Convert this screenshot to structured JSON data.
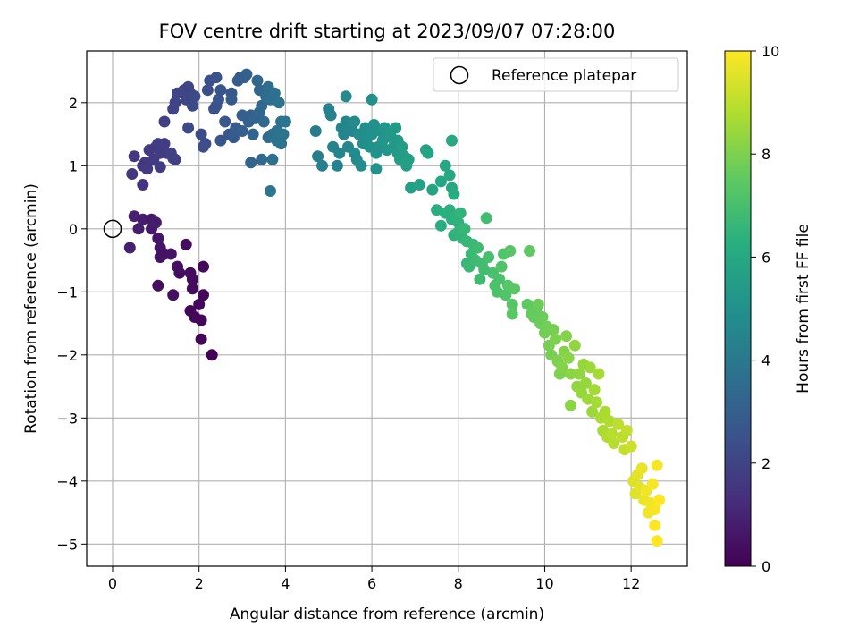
{
  "chart_data": {
    "type": "scatter",
    "title": "FOV centre drift starting at 2023/09/07 07:28:00",
    "xlabel": "Angular distance from reference (arcmin)",
    "ylabel": "Rotation from reference (arcmin)",
    "xlim": [
      -0.6,
      13.3
    ],
    "ylim": [
      -5.35,
      2.82
    ],
    "xticks": [
      0,
      2,
      4,
      6,
      8,
      10,
      12
    ],
    "yticks": [
      -5,
      -4,
      -3,
      -2,
      -1,
      0,
      1,
      2
    ],
    "grid": true,
    "legend": {
      "placement": "top-right",
      "entries": [
        "Reference platepar"
      ]
    },
    "reference_point": {
      "x": 0,
      "y": 0
    },
    "colorbar": {
      "label": "Hours from first FF file",
      "range": [
        0,
        10
      ],
      "ticks": [
        0,
        2,
        4,
        6,
        8,
        10
      ],
      "colormap": "viridis"
    },
    "points": [
      [
        0.4,
        -0.3,
        0.9
      ],
      [
        0.5,
        0.2,
        0.9
      ],
      [
        0.6,
        0.0,
        0.8
      ],
      [
        0.7,
        0.15,
        0.8
      ],
      [
        0.9,
        0.15,
        0.7
      ],
      [
        0.9,
        0.0,
        0.7
      ],
      [
        1.0,
        0.1,
        0.8
      ],
      [
        1.05,
        -0.15,
        0.6
      ],
      [
        1.1,
        -0.3,
        0.6
      ],
      [
        1.1,
        -0.45,
        0.5
      ],
      [
        1.2,
        -0.4,
        0.5
      ],
      [
        1.35,
        -0.4,
        0.5
      ],
      [
        1.05,
        -0.9,
        0.4
      ],
      [
        1.4,
        -1.05,
        0.4
      ],
      [
        1.5,
        -0.6,
        0.4
      ],
      [
        1.55,
        -0.7,
        0.4
      ],
      [
        1.7,
        -0.25,
        0.3
      ],
      [
        1.8,
        -0.7,
        0.3
      ],
      [
        1.85,
        -0.8,
        0.3
      ],
      [
        1.85,
        -0.95,
        0.3
      ],
      [
        1.8,
        -1.3,
        0.2
      ],
      [
        1.9,
        -1.4,
        0.2
      ],
      [
        2.0,
        -1.2,
        0.2
      ],
      [
        2.05,
        -1.45,
        0.2
      ],
      [
        2.1,
        -0.6,
        0.2
      ],
      [
        2.1,
        -1.05,
        0.2
      ],
      [
        2.05,
        -1.75,
        0.1
      ],
      [
        2.3,
        -2.0,
        0.05
      ],
      [
        0.45,
        0.87,
        1.6
      ],
      [
        0.5,
        1.15,
        1.6
      ],
      [
        0.7,
        1.0,
        1.6
      ],
      [
        0.7,
        0.7,
        1.5
      ],
      [
        0.75,
        1.05,
        1.6
      ],
      [
        0.8,
        0.95,
        1.7
      ],
      [
        0.85,
        1.25,
        1.7
      ],
      [
        0.95,
        1.1,
        1.7
      ],
      [
        1.0,
        1.3,
        1.7
      ],
      [
        1.05,
        1.35,
        1.8
      ],
      [
        1.1,
        1.2,
        1.8
      ],
      [
        1.1,
        0.98,
        1.8
      ],
      [
        1.2,
        1.35,
        1.8
      ],
      [
        1.25,
        1.2,
        1.8
      ],
      [
        1.35,
        1.2,
        1.9
      ],
      [
        1.4,
        1.12,
        1.9
      ],
      [
        1.45,
        1.1,
        1.9
      ],
      [
        1.2,
        1.7,
        1.9
      ],
      [
        1.4,
        1.9,
        2.0
      ],
      [
        1.45,
        2.0,
        2.0
      ],
      [
        1.5,
        2.15,
        2.0
      ],
      [
        1.65,
        2.2,
        2.1
      ],
      [
        1.7,
        2.05,
        2.1
      ],
      [
        1.75,
        2.25,
        2.1
      ],
      [
        1.8,
        2.15,
        2.1
      ],
      [
        1.85,
        1.95,
        2.2
      ],
      [
        1.75,
        1.6,
        2.2
      ],
      [
        1.9,
        2.1,
        2.2
      ],
      [
        2.05,
        1.5,
        2.3
      ],
      [
        2.1,
        1.3,
        2.3
      ],
      [
        2.15,
        1.35,
        2.4
      ],
      [
        2.2,
        2.2,
        2.4
      ],
      [
        2.25,
        2.35,
        2.4
      ],
      [
        2.35,
        1.9,
        2.5
      ],
      [
        2.4,
        1.95,
        2.5
      ],
      [
        2.4,
        2.4,
        2.5
      ],
      [
        2.45,
        2.05,
        2.6
      ],
      [
        2.5,
        1.4,
        2.6
      ],
      [
        2.5,
        2.2,
        2.6
      ],
      [
        2.6,
        1.7,
        2.7
      ],
      [
        2.7,
        1.5,
        2.7
      ],
      [
        2.75,
        2.15,
        2.7
      ],
      [
        2.75,
        2.05,
        2.8
      ],
      [
        2.8,
        1.45,
        2.8
      ],
      [
        2.85,
        1.6,
        2.9
      ],
      [
        2.9,
        2.35,
        2.9
      ],
      [
        2.95,
        2.4,
        2.9
      ],
      [
        3.0,
        1.8,
        3.0
      ],
      [
        3.0,
        1.55,
        3.0
      ],
      [
        3.05,
        2.4,
        3.0
      ],
      [
        3.1,
        2.45,
        3.1
      ],
      [
        3.15,
        1.7,
        3.1
      ],
      [
        3.2,
        1.8,
        3.1
      ],
      [
        3.2,
        1.05,
        3.2
      ],
      [
        3.25,
        1.5,
        3.2
      ],
      [
        3.3,
        1.75,
        3.2
      ],
      [
        3.35,
        2.35,
        3.3
      ],
      [
        3.4,
        2.2,
        3.3
      ],
      [
        3.4,
        1.85,
        3.3
      ],
      [
        3.45,
        1.95,
        3.4
      ],
      [
        3.45,
        1.1,
        3.4
      ],
      [
        3.5,
        1.7,
        3.4
      ],
      [
        3.55,
        2.1,
        3.5
      ],
      [
        3.6,
        2.25,
        3.5
      ],
      [
        3.6,
        1.45,
        3.5
      ],
      [
        3.65,
        2.05,
        3.6
      ],
      [
        3.7,
        1.5,
        3.6
      ],
      [
        3.7,
        1.1,
        3.6
      ],
      [
        3.75,
        2.15,
        3.7
      ],
      [
        3.8,
        1.4,
        3.7
      ],
      [
        3.8,
        1.55,
        3.7
      ],
      [
        3.85,
        2.0,
        3.8
      ],
      [
        3.9,
        1.7,
        3.8
      ],
      [
        3.9,
        1.35,
        3.8
      ],
      [
        3.95,
        1.5,
        3.8
      ],
      [
        4.0,
        1.7,
        3.9
      ],
      [
        3.65,
        0.6,
        3.9
      ],
      [
        4.7,
        1.55,
        4.2
      ],
      [
        4.75,
        1.15,
        4.2
      ],
      [
        4.85,
        1.0,
        4.3
      ],
      [
        5.0,
        1.9,
        4.3
      ],
      [
        5.05,
        1.8,
        4.4
      ],
      [
        5.1,
        1.3,
        4.4
      ],
      [
        5.2,
        1.0,
        4.4
      ],
      [
        5.25,
        1.2,
        4.5
      ],
      [
        5.3,
        1.6,
        4.5
      ],
      [
        5.35,
        1.5,
        4.5
      ],
      [
        5.4,
        1.7,
        4.5
      ],
      [
        5.45,
        1.3,
        4.6
      ],
      [
        5.5,
        1.6,
        4.6
      ],
      [
        5.55,
        1.55,
        4.6
      ],
      [
        5.6,
        1.7,
        4.7
      ],
      [
        5.6,
        1.2,
        4.7
      ],
      [
        5.65,
        1.1,
        4.7
      ],
      [
        5.7,
        1.5,
        4.8
      ],
      [
        5.75,
        1.0,
        4.8
      ],
      [
        5.8,
        1.35,
        4.8
      ],
      [
        5.85,
        1.6,
        4.9
      ],
      [
        5.9,
        1.45,
        4.9
      ],
      [
        5.95,
        1.3,
        5.0
      ],
      [
        5.4,
        2.1,
        4.7
      ],
      [
        6.0,
        1.5,
        5.0
      ],
      [
        6.05,
        1.65,
        5.0
      ],
      [
        6.1,
        1.2,
        5.1
      ],
      [
        6.15,
        1.3,
        5.1
      ],
      [
        6.2,
        1.55,
        5.1
      ],
      [
        6.25,
        1.4,
        5.2
      ],
      [
        6.3,
        1.6,
        5.2
      ],
      [
        6.35,
        1.25,
        5.2
      ],
      [
        6.4,
        1.5,
        5.3
      ],
      [
        6.45,
        1.45,
        5.3
      ],
      [
        6.5,
        1.3,
        5.3
      ],
      [
        6.55,
        1.6,
        5.4
      ],
      [
        6.6,
        1.2,
        5.4
      ],
      [
        6.6,
        1.4,
        5.4
      ],
      [
        6.65,
        1.1,
        5.5
      ],
      [
        6.7,
        1.3,
        5.5
      ],
      [
        6.75,
        1.15,
        5.5
      ],
      [
        6.8,
        1.0,
        5.6
      ],
      [
        6.85,
        1.1,
        5.6
      ],
      [
        6.1,
        0.95,
        5.1
      ],
      [
        6.0,
        2.05,
        5.0
      ],
      [
        6.9,
        0.65,
        5.6
      ],
      [
        7.1,
        0.7,
        5.7
      ],
      [
        7.25,
        1.25,
        5.7
      ],
      [
        7.3,
        1.2,
        5.8
      ],
      [
        7.4,
        0.62,
        5.8
      ],
      [
        7.6,
        0.75,
        5.9
      ],
      [
        7.7,
        1.0,
        5.9
      ],
      [
        7.8,
        0.85,
        6.0
      ],
      [
        7.85,
        1.4,
        6.0
      ],
      [
        7.85,
        0.65,
        6.0
      ],
      [
        7.9,
        0.55,
        6.1
      ],
      [
        7.5,
        0.3,
        6.2
      ],
      [
        7.6,
        0.05,
        6.2
      ],
      [
        7.7,
        0.25,
        6.3
      ],
      [
        7.8,
        0.3,
        6.3
      ],
      [
        7.85,
        0.15,
        6.3
      ],
      [
        7.9,
        -0.1,
        6.4
      ],
      [
        7.95,
        0.2,
        6.4
      ],
      [
        8.0,
        0.1,
        6.4
      ],
      [
        8.0,
        -0.05,
        6.5
      ],
      [
        8.05,
        0.25,
        6.5
      ],
      [
        8.1,
        -0.15,
        6.5
      ],
      [
        8.15,
        0.0,
        6.6
      ],
      [
        8.2,
        -0.2,
        6.6
      ],
      [
        8.2,
        -0.55,
        6.6
      ],
      [
        8.25,
        -0.6,
        6.7
      ],
      [
        8.3,
        -0.4,
        6.7
      ],
      [
        8.35,
        -0.25,
        6.7
      ],
      [
        8.4,
        -0.5,
        6.8
      ],
      [
        8.45,
        -0.3,
        6.8
      ],
      [
        8.5,
        -0.8,
        6.8
      ],
      [
        8.55,
        -0.55,
        6.9
      ],
      [
        8.6,
        -0.65,
        6.9
      ],
      [
        8.65,
        0.17,
        6.9
      ],
      [
        8.7,
        -0.45,
        7.0
      ],
      [
        8.8,
        -0.7,
        7.0
      ],
      [
        8.85,
        -0.9,
        7.1
      ],
      [
        8.9,
        -1.0,
        7.1
      ],
      [
        8.95,
        -0.8,
        7.1
      ],
      [
        9.0,
        -0.6,
        7.2
      ],
      [
        9.05,
        -0.4,
        7.2
      ],
      [
        9.1,
        -1.05,
        7.2
      ],
      [
        9.15,
        -0.9,
        7.3
      ],
      [
        9.2,
        -0.35,
        7.3
      ],
      [
        9.25,
        -1.2,
        7.3
      ],
      [
        9.25,
        -1.35,
        7.4
      ],
      [
        9.3,
        -0.95,
        7.4
      ],
      [
        9.6,
        -1.2,
        7.5
      ],
      [
        9.65,
        -0.35,
        7.5
      ],
      [
        9.7,
        -1.35,
        7.6
      ],
      [
        9.75,
        -1.4,
        7.6
      ],
      [
        9.8,
        -1.3,
        7.6
      ],
      [
        9.85,
        -1.2,
        7.7
      ],
      [
        9.9,
        -1.5,
        7.7
      ],
      [
        9.95,
        -1.4,
        7.7
      ],
      [
        10.0,
        -1.65,
        7.8
      ],
      [
        10.05,
        -1.55,
        7.8
      ],
      [
        10.1,
        -1.85,
        7.9
      ],
      [
        10.15,
        -2.0,
        7.9
      ],
      [
        10.2,
        -1.6,
        7.9
      ],
      [
        10.25,
        -1.75,
        8.0
      ],
      [
        10.3,
        -2.1,
        8.0
      ],
      [
        10.35,
        -2.3,
        8.0
      ],
      [
        10.4,
        -2.2,
        8.1
      ],
      [
        10.45,
        -1.95,
        8.1
      ],
      [
        10.5,
        -1.7,
        8.1
      ],
      [
        10.55,
        -2.05,
        8.2
      ],
      [
        10.6,
        -2.3,
        8.2
      ],
      [
        10.6,
        -2.8,
        8.2
      ],
      [
        10.7,
        -1.85,
        8.3
      ],
      [
        10.75,
        -2.5,
        8.3
      ],
      [
        10.8,
        -2.3,
        8.3
      ],
      [
        10.85,
        -2.6,
        8.4
      ],
      [
        10.9,
        -2.15,
        8.4
      ],
      [
        10.95,
        -2.45,
        8.4
      ],
      [
        11.0,
        -2.7,
        8.5
      ],
      [
        11.05,
        -2.2,
        8.5
      ],
      [
        11.1,
        -2.9,
        8.5
      ],
      [
        11.15,
        -2.55,
        8.6
      ],
      [
        11.2,
        -2.75,
        8.6
      ],
      [
        11.25,
        -2.3,
        8.6
      ],
      [
        11.3,
        -3.0,
        8.7
      ],
      [
        11.35,
        -3.2,
        8.7
      ],
      [
        11.4,
        -2.9,
        8.7
      ],
      [
        11.45,
        -3.3,
        8.8
      ],
      [
        11.5,
        -3.05,
        8.8
      ],
      [
        11.55,
        -3.25,
        8.9
      ],
      [
        11.6,
        -3.4,
        8.9
      ],
      [
        11.7,
        -3.1,
        9.0
      ],
      [
        11.8,
        -3.3,
        9.0
      ],
      [
        11.85,
        -3.5,
        9.1
      ],
      [
        11.9,
        -3.2,
        9.1
      ],
      [
        12.0,
        -3.45,
        9.2
      ],
      [
        12.05,
        -4.0,
        9.5
      ],
      [
        12.1,
        -4.2,
        9.5
      ],
      [
        12.15,
        -3.9,
        9.6
      ],
      [
        12.2,
        -4.1,
        9.6
      ],
      [
        12.25,
        -3.8,
        9.7
      ],
      [
        12.3,
        -4.3,
        9.7
      ],
      [
        12.35,
        -4.15,
        9.8
      ],
      [
        12.4,
        -4.5,
        9.8
      ],
      [
        12.45,
        -4.35,
        9.8
      ],
      [
        12.5,
        -4.05,
        9.9
      ],
      [
        12.55,
        -4.45,
        9.9
      ],
      [
        12.6,
        -3.75,
        9.9
      ],
      [
        12.65,
        -4.3,
        10.0
      ],
      [
        12.55,
        -4.7,
        10.0
      ],
      [
        12.6,
        -4.95,
        10.0
      ]
    ]
  }
}
